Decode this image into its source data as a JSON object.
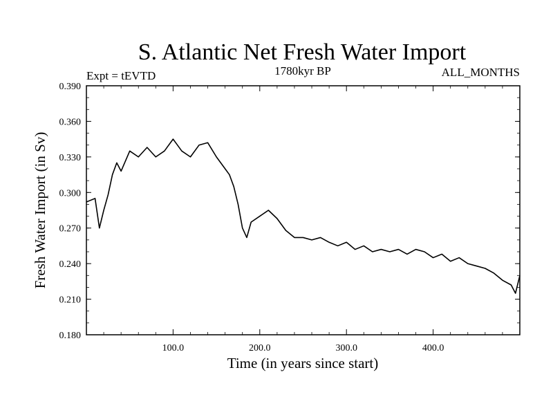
{
  "chart_data": {
    "type": "line",
    "title": "S. Atlantic Net Fresh Water Import",
    "subtitle_left": "Expt = tEVTD",
    "subtitle_center": "1780kyr BP",
    "subtitle_right": "ALL_MONTHS",
    "xlabel": "Time (in years since start)",
    "ylabel": "Fresh Water Import (in Sv)",
    "xlim": [
      0,
      500
    ],
    "ylim": [
      0.18,
      0.39
    ],
    "xticks": [
      100,
      200,
      300,
      400
    ],
    "xtick_labels": [
      "100.0",
      "200.0",
      "300.0",
      "400.0"
    ],
    "yticks": [
      0.18,
      0.21,
      0.24,
      0.27,
      0.3,
      0.33,
      0.36,
      0.39
    ],
    "ytick_labels": [
      "0.180",
      "0.210",
      "0.240",
      "0.270",
      "0.300",
      "0.330",
      "0.360",
      "0.390"
    ],
    "grid": false,
    "series": [
      {
        "name": "Net Fresh Water Import",
        "points": [
          [
            0,
            0.292
          ],
          [
            10,
            0.295
          ],
          [
            15,
            0.27
          ],
          [
            20,
            0.285
          ],
          [
            25,
            0.298
          ],
          [
            30,
            0.315
          ],
          [
            35,
            0.325
          ],
          [
            40,
            0.318
          ],
          [
            50,
            0.335
          ],
          [
            60,
            0.33
          ],
          [
            70,
            0.338
          ],
          [
            80,
            0.33
          ],
          [
            90,
            0.335
          ],
          [
            100,
            0.345
          ],
          [
            110,
            0.335
          ],
          [
            120,
            0.33
          ],
          [
            130,
            0.34
          ],
          [
            140,
            0.342
          ],
          [
            150,
            0.33
          ],
          [
            160,
            0.32
          ],
          [
            165,
            0.315
          ],
          [
            170,
            0.305
          ],
          [
            175,
            0.29
          ],
          [
            180,
            0.27
          ],
          [
            185,
            0.262
          ],
          [
            190,
            0.275
          ],
          [
            200,
            0.28
          ],
          [
            210,
            0.285
          ],
          [
            220,
            0.278
          ],
          [
            230,
            0.268
          ],
          [
            240,
            0.262
          ],
          [
            250,
            0.262
          ],
          [
            260,
            0.26
          ],
          [
            270,
            0.262
          ],
          [
            280,
            0.258
          ],
          [
            290,
            0.255
          ],
          [
            300,
            0.258
          ],
          [
            310,
            0.252
          ],
          [
            320,
            0.255
          ],
          [
            330,
            0.25
          ],
          [
            340,
            0.252
          ],
          [
            350,
            0.25
          ],
          [
            360,
            0.252
          ],
          [
            370,
            0.248
          ],
          [
            380,
            0.252
          ],
          [
            390,
            0.25
          ],
          [
            400,
            0.245
          ],
          [
            410,
            0.248
          ],
          [
            420,
            0.242
          ],
          [
            430,
            0.245
          ],
          [
            440,
            0.24
          ],
          [
            450,
            0.238
          ],
          [
            460,
            0.236
          ],
          [
            470,
            0.232
          ],
          [
            480,
            0.226
          ],
          [
            490,
            0.222
          ],
          [
            495,
            0.215
          ],
          [
            500,
            0.23
          ]
        ]
      }
    ]
  }
}
